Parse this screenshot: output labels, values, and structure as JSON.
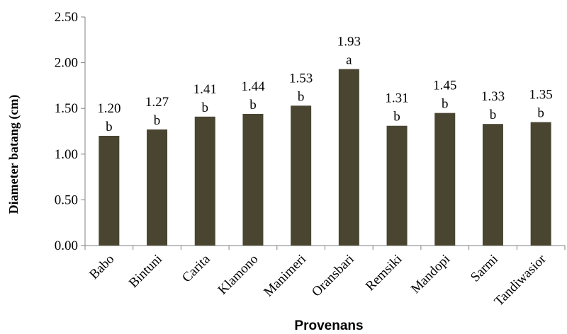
{
  "chart_data": {
    "type": "bar",
    "title": "",
    "xlabel": "Provenans",
    "ylabel": "Diameter batang (cm)",
    "ylim": [
      0,
      2.5
    ],
    "yticks": [
      "0.00",
      "0.50",
      "1.00",
      "1.50",
      "2.00",
      "2.50"
    ],
    "grid": false,
    "legend": "none",
    "categories": [
      "Babo",
      "Bintuni",
      "Carita",
      "Klamono",
      "Manimeri",
      "Oransbari",
      "Remsiki",
      "Mandopi",
      "Sarmi",
      "Tandiwasior"
    ],
    "values": [
      1.2,
      1.27,
      1.41,
      1.44,
      1.53,
      1.93,
      1.31,
      1.45,
      1.33,
      1.35
    ],
    "value_labels": [
      "1.20",
      "1.27",
      "1.41",
      "1.44",
      "1.53",
      "1.93",
      "1.31",
      "1.45",
      "1.33",
      "1.35"
    ],
    "significance_letters": [
      "b",
      "b",
      "b",
      "b",
      "b",
      "a",
      "b",
      "b",
      "b",
      "b"
    ],
    "bar_color": "#4a4531"
  }
}
